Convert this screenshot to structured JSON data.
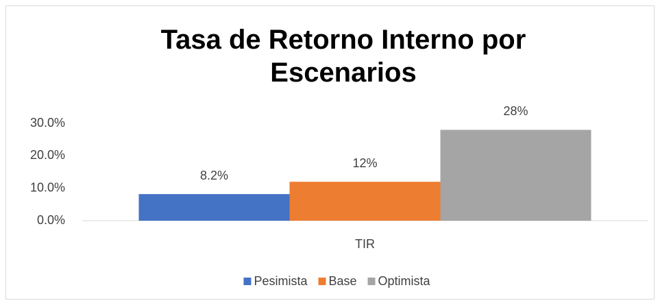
{
  "chart_data": {
    "type": "bar",
    "title": "Tasa de Retorno Interno por Escenarios",
    "categories": [
      "TIR"
    ],
    "series": [
      {
        "name": "Pesimista",
        "color": "#4472c4",
        "values": [
          8.2
        ],
        "value_labels": [
          "8.2%"
        ]
      },
      {
        "name": "Base",
        "color": "#ed7d31",
        "values": [
          12
        ],
        "value_labels": [
          "12%"
        ]
      },
      {
        "name": "Optimista",
        "color": "#a5a5a5",
        "values": [
          28
        ],
        "value_labels": [
          "28%"
        ]
      }
    ],
    "ylim": [
      0,
      30
    ],
    "yticks": [
      {
        "value": 0,
        "label": "0.0%"
      },
      {
        "value": 10,
        "label": "10.0%"
      },
      {
        "value": 20,
        "label": "20.0%"
      },
      {
        "value": 30,
        "label": "30.0%"
      }
    ],
    "grid": false,
    "legend": "bottom"
  }
}
